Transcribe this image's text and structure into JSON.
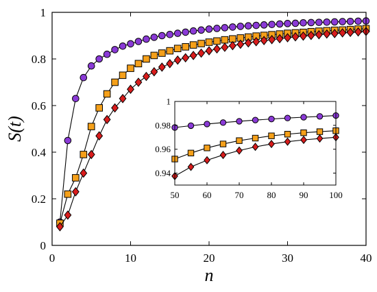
{
  "chart_data": [
    {
      "type": "line",
      "xlabel": "n",
      "ylabel": "S(t)",
      "xlim": [
        0,
        40
      ],
      "ylim": [
        0,
        1
      ],
      "xticks": [
        0,
        10,
        20,
        30,
        40
      ],
      "yticks": [
        0,
        0.2,
        0.4,
        0.6,
        0.8,
        1
      ],
      "xtick_labels": [
        "0",
        "10",
        "20",
        "30",
        "40"
      ],
      "ytick_labels": [
        "0",
        "0.2",
        "0.4",
        "0.6",
        "0.8",
        "1"
      ],
      "grid": false,
      "series": [
        {
          "marker": "circle",
          "color": "#8a3ad6",
          "x": [
            1,
            2,
            3,
            4,
            5,
            6,
            7,
            8,
            9,
            10,
            11,
            12,
            13,
            14,
            15,
            16,
            17,
            18,
            19,
            20,
            21,
            22,
            23,
            24,
            25,
            26,
            27,
            28,
            29,
            30,
            31,
            32,
            33,
            34,
            35,
            36,
            37,
            38,
            39,
            40
          ],
          "values": [
            0.1,
            0.45,
            0.63,
            0.72,
            0.77,
            0.8,
            0.82,
            0.84,
            0.855,
            0.865,
            0.875,
            0.885,
            0.893,
            0.9,
            0.905,
            0.91,
            0.915,
            0.92,
            0.924,
            0.928,
            0.931,
            0.934,
            0.937,
            0.94,
            0.942,
            0.944,
            0.946,
            0.948,
            0.95,
            0.952,
            0.953,
            0.955,
            0.956,
            0.957,
            0.958,
            0.959,
            0.96,
            0.961,
            0.962,
            0.963
          ]
        },
        {
          "marker": "square",
          "color": "#f5a01a",
          "x": [
            1,
            2,
            3,
            4,
            5,
            6,
            7,
            8,
            9,
            10,
            11,
            12,
            13,
            14,
            15,
            16,
            17,
            18,
            19,
            20,
            21,
            22,
            23,
            24,
            25,
            26,
            27,
            28,
            29,
            30,
            31,
            32,
            33,
            34,
            35,
            36,
            37,
            38,
            39,
            40
          ],
          "values": [
            0.095,
            0.22,
            0.29,
            0.39,
            0.51,
            0.59,
            0.65,
            0.7,
            0.73,
            0.76,
            0.78,
            0.8,
            0.815,
            0.825,
            0.835,
            0.845,
            0.852,
            0.86,
            0.866,
            0.872,
            0.877,
            0.882,
            0.886,
            0.89,
            0.894,
            0.898,
            0.901,
            0.904,
            0.907,
            0.91,
            0.912,
            0.914,
            0.917,
            0.919,
            0.921,
            0.923,
            0.924,
            0.926,
            0.928,
            0.93
          ]
        },
        {
          "marker": "diamond",
          "color": "#d81c1c",
          "x": [
            1,
            2,
            3,
            4,
            5,
            6,
            7,
            8,
            9,
            10,
            11,
            12,
            13,
            14,
            15,
            16,
            17,
            18,
            19,
            20,
            21,
            22,
            23,
            24,
            25,
            26,
            27,
            28,
            29,
            30,
            31,
            32,
            33,
            34,
            35,
            36,
            37,
            38,
            39,
            40
          ],
          "values": [
            0.08,
            0.13,
            0.23,
            0.31,
            0.39,
            0.47,
            0.54,
            0.59,
            0.63,
            0.67,
            0.7,
            0.725,
            0.745,
            0.765,
            0.78,
            0.795,
            0.805,
            0.815,
            0.825,
            0.835,
            0.843,
            0.85,
            0.857,
            0.863,
            0.869,
            0.874,
            0.879,
            0.883,
            0.887,
            0.891,
            0.895,
            0.898,
            0.901,
            0.904,
            0.907,
            0.909,
            0.912,
            0.914,
            0.916,
            0.918
          ]
        }
      ]
    },
    {
      "type": "line",
      "xlim": [
        50,
        100
      ],
      "ylim": [
        0.93,
        1
      ],
      "xticks": [
        50,
        60,
        70,
        80,
        90,
        100
      ],
      "yticks": [
        0.94,
        0.96,
        0.98,
        1
      ],
      "xtick_labels": [
        "50",
        "60",
        "70",
        "80",
        "90",
        "100"
      ],
      "ytick_labels": [
        "0.94",
        "0.96",
        "0.98",
        "1"
      ],
      "grid": false,
      "series": [
        {
          "marker": "circle",
          "color": "#8a3ad6",
          "x": [
            50,
            55,
            60,
            65,
            70,
            75,
            80,
            85,
            90,
            95,
            100
          ],
          "values": [
            0.9782,
            0.9797,
            0.9811,
            0.9823,
            0.9834,
            0.9844,
            0.9853,
            0.9861,
            0.9868,
            0.9875,
            0.9882
          ]
        },
        {
          "marker": "square",
          "color": "#f5a01a",
          "x": [
            50,
            55,
            60,
            65,
            70,
            75,
            80,
            85,
            90,
            95,
            100
          ],
          "values": [
            0.9518,
            0.9568,
            0.9611,
            0.9644,
            0.9672,
            0.9693,
            0.9712,
            0.9726,
            0.9738,
            0.9747,
            0.9755
          ]
        },
        {
          "marker": "diamond",
          "color": "#d81c1c",
          "x": [
            50,
            55,
            60,
            65,
            70,
            75,
            80,
            85,
            90,
            95,
            100
          ],
          "values": [
            0.9375,
            0.9452,
            0.9508,
            0.9552,
            0.9589,
            0.962,
            0.9644,
            0.9663,
            0.9678,
            0.969,
            0.97
          ]
        }
      ]
    }
  ]
}
